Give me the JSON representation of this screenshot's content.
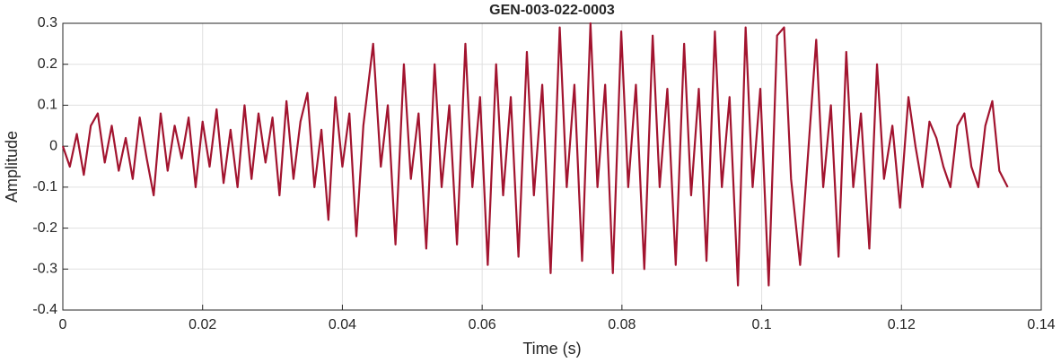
{
  "chart_data": {
    "type": "line",
    "title": "GEN-003-022-0003",
    "xlabel": "Time (s)",
    "ylabel": "Amplitude",
    "xlim": [
      0,
      0.14
    ],
    "xticks": [
      0,
      0.02,
      0.04,
      0.06,
      0.08,
      0.1,
      0.12,
      0.14
    ],
    "ylim": [
      -0.4,
      0.3
    ],
    "yticks": [
      -0.4,
      -0.3,
      -0.2,
      -0.1,
      0,
      0.1,
      0.2,
      0.3
    ],
    "grid": true,
    "series": [
      {
        "color": "#a2142f",
        "x": [
          0,
          0.001,
          0.002,
          0.003,
          0.004,
          0.005,
          0.006,
          0.007,
          0.008,
          0.009,
          0.01,
          0.011,
          0.012,
          0.013,
          0.014,
          0.015,
          0.016,
          0.017,
          0.018,
          0.019,
          0.02,
          0.021,
          0.022,
          0.023,
          0.024,
          0.025,
          0.026,
          0.027,
          0.028,
          0.029,
          0.03,
          0.031,
          0.032,
          0.033,
          0.034,
          0.035,
          0.036,
          0.037,
          0.038,
          0.039,
          0.04,
          0.041,
          0.042,
          0.043,
          0.0444,
          0.0455,
          0.0465,
          0.0476,
          0.0488,
          0.0498,
          0.0509,
          0.052,
          0.0532,
          0.0542,
          0.0553,
          0.0564,
          0.0576,
          0.0586,
          0.0597,
          0.0608,
          0.062,
          0.063,
          0.0641,
          0.0652,
          0.0664,
          0.0674,
          0.0686,
          0.0698,
          0.0711,
          0.0721,
          0.0732,
          0.0743,
          0.0755,
          0.0765,
          0.0776,
          0.0787,
          0.0799,
          0.0809,
          0.082,
          0.0832,
          0.0844,
          0.0854,
          0.0865,
          0.0877,
          0.0889,
          0.0899,
          0.091,
          0.0921,
          0.0933,
          0.0943,
          0.0954,
          0.0966,
          0.0977,
          0.0987,
          0.0998,
          0.101,
          0.1022,
          0.1032,
          0.1042,
          0.1055,
          0.1078,
          0.1088,
          0.1099,
          0.111,
          0.1121,
          0.1131,
          0.1142,
          0.1154,
          0.1165,
          0.1175,
          0.1187,
          0.1198,
          0.121,
          0.122,
          0.123,
          0.124,
          0.125,
          0.126,
          0.127,
          0.128,
          0.129,
          0.13,
          0.131,
          0.132,
          0.133,
          0.134,
          0.1352
        ],
        "values": [
          0,
          -0.05,
          0.03,
          -0.07,
          0.05,
          0.08,
          -0.04,
          0.05,
          -0.06,
          0.02,
          -0.08,
          0.07,
          -0.03,
          -0.12,
          0.08,
          -0.06,
          0.05,
          -0.03,
          0.07,
          -0.1,
          0.06,
          -0.05,
          0.09,
          -0.09,
          0.04,
          -0.1,
          0.1,
          -0.08,
          0.08,
          -0.04,
          0.07,
          -0.12,
          0.11,
          -0.08,
          0.06,
          0.13,
          -0.1,
          0.04,
          -0.18,
          0.12,
          -0.05,
          0.08,
          -0.22,
          0.05,
          0.25,
          -0.05,
          0.1,
          -0.24,
          0.2,
          -0.08,
          0.08,
          -0.25,
          0.2,
          -0.1,
          0.1,
          -0.24,
          0.25,
          -0.1,
          0.12,
          -0.29,
          0.2,
          -0.12,
          0.12,
          -0.27,
          0.23,
          -0.12,
          0.15,
          -0.31,
          0.29,
          -0.1,
          0.15,
          -0.28,
          0.3,
          -0.1,
          0.15,
          -0.31,
          0.28,
          -0.1,
          0.15,
          -0.3,
          0.27,
          -0.1,
          0.14,
          -0.29,
          0.25,
          -0.12,
          0.14,
          -0.28,
          0.28,
          -0.1,
          0.12,
          -0.34,
          0.29,
          -0.1,
          0.14,
          -0.34,
          0.27,
          0.29,
          -0.08,
          -0.29,
          0.26,
          -0.1,
          0.1,
          -0.27,
          0.23,
          -0.1,
          0.08,
          -0.25,
          0.2,
          -0.08,
          0.05,
          -0.15,
          0.12,
          0,
          -0.1,
          0.06,
          0.02,
          -0.05,
          -0.1,
          0.05,
          0.08,
          -0.05,
          -0.1,
          0.05,
          0.11,
          -0.06,
          -0.1
        ]
      }
    ]
  }
}
